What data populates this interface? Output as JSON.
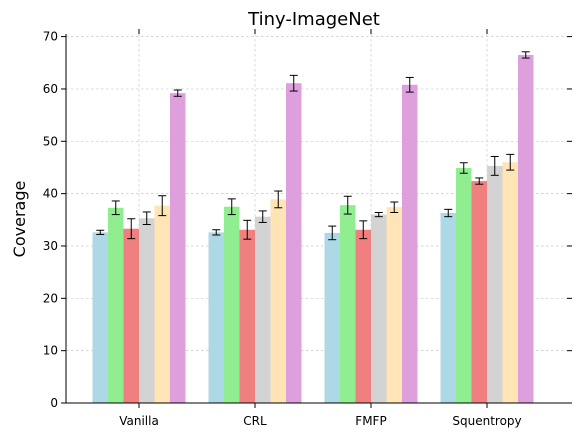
{
  "chart_data": {
    "type": "bar",
    "title": "Tiny-ImageNet",
    "xlabel": "",
    "ylabel": "Coverage",
    "categories": [
      "Vanilla",
      "CRL",
      "FMFP",
      "Squentropy"
    ],
    "ylim": [
      0,
      70.5
    ],
    "yticks": [
      0,
      10,
      20,
      30,
      40,
      50,
      60,
      70
    ],
    "grid": true,
    "series": [
      {
        "color": "#add8e6",
        "values": [
          32.6,
          32.6,
          32.5,
          36.3
        ],
        "errors": [
          0.4,
          0.5,
          1.3,
          0.7
        ]
      },
      {
        "color": "#90ee90",
        "values": [
          37.3,
          37.5,
          37.8,
          44.9
        ],
        "errors": [
          1.3,
          1.5,
          1.7,
          1.0
        ]
      },
      {
        "color": "#f08080",
        "values": [
          33.3,
          33.1,
          33.1,
          42.4
        ],
        "errors": [
          1.9,
          1.8,
          1.7,
          0.6
        ]
      },
      {
        "color": "#d3d3d3",
        "values": [
          35.3,
          35.6,
          36.0,
          45.3
        ],
        "errors": [
          1.2,
          1.1,
          0.4,
          1.8
        ]
      },
      {
        "color": "#ffe4b5",
        "values": [
          37.7,
          38.9,
          37.4,
          46.0
        ],
        "errors": [
          1.9,
          1.6,
          1.0,
          1.5
        ]
      },
      {
        "color": "#dda0dd",
        "values": [
          59.2,
          61.1,
          60.8,
          66.5
        ],
        "errors": [
          0.6,
          1.5,
          1.4,
          0.6
        ]
      }
    ]
  }
}
